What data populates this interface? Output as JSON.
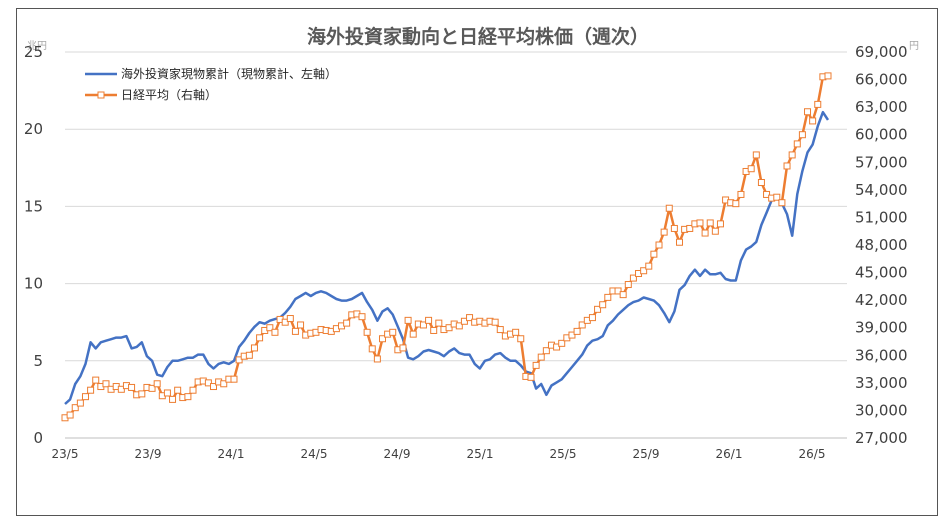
{
  "chart_data": {
    "type": "line",
    "title": "海外投資家動向と日経平均株価（週次）",
    "left_unit": "兆円",
    "right_unit": "円",
    "x_ticks": [
      "23/5",
      "23/9",
      "24/1",
      "24/5",
      "24/9",
      "25/1",
      "25/5",
      "25/9",
      "26/1",
      "26/5"
    ],
    "y_left": {
      "min": 0,
      "max": 25,
      "ticks": [
        "0",
        "5",
        "10",
        "15",
        "20",
        "25"
      ]
    },
    "y_right": {
      "min": 27000,
      "max": 69000,
      "ticks": [
        "27,000",
        "30,000",
        "33,000",
        "36,000",
        "39,000",
        "42,000",
        "45,000",
        "48,000",
        "51,000",
        "54,000",
        "57,000",
        "60,000",
        "63,000",
        "66,000",
        "69,000"
      ]
    },
    "grid": true,
    "legend_placement": "top-left",
    "series": [
      {
        "name": "海外投資家現物累計（現物累計、左軸）",
        "axis": "left",
        "color": "#4472c4",
        "marker": "none",
        "values": [
          2.2,
          2.5,
          3.5,
          4.0,
          4.8,
          6.2,
          5.8,
          6.2,
          6.3,
          6.4,
          6.5,
          6.5,
          6.6,
          5.8,
          5.9,
          6.2,
          5.3,
          5.0,
          4.1,
          4.0,
          4.6,
          5.0,
          5.0,
          5.1,
          5.2,
          5.2,
          5.4,
          5.4,
          4.8,
          4.5,
          4.8,
          4.9,
          4.8,
          5.0,
          5.9,
          6.3,
          6.8,
          7.2,
          7.5,
          7.4,
          7.6,
          7.7,
          7.8,
          8.1,
          8.5,
          9.0,
          9.2,
          9.4,
          9.2,
          9.4,
          9.5,
          9.4,
          9.2,
          9.0,
          8.9,
          8.9,
          9.0,
          9.2,
          9.4,
          8.8,
          8.3,
          7.6,
          8.2,
          8.4,
          8.0,
          7.2,
          6.4,
          5.2,
          5.1,
          5.3,
          5.6,
          5.7,
          5.6,
          5.5,
          5.3,
          5.6,
          5.8,
          5.5,
          5.4,
          5.4,
          4.8,
          4.5,
          5.0,
          5.1,
          5.4,
          5.5,
          5.2,
          5.0,
          5.0,
          4.7,
          4.3,
          4.2,
          3.2,
          3.5,
          2.8,
          3.4,
          3.6,
          3.8,
          4.2,
          4.6,
          5.0,
          5.4,
          6.0,
          6.3,
          6.4,
          6.6,
          7.3,
          7.6,
          8.0,
          8.3,
          8.6,
          8.8,
          8.9,
          9.1,
          9.0,
          8.9,
          8.6,
          8.1,
          7.5,
          8.2,
          9.6,
          9.9,
          10.5,
          10.9,
          10.5,
          10.9,
          10.6,
          10.6,
          10.7,
          10.3,
          10.2,
          10.2,
          11.5,
          12.2,
          12.4,
          12.7,
          13.8,
          14.6,
          15.4,
          15.6,
          15.2,
          14.5,
          13.1,
          15.8,
          17.3,
          18.5,
          19.0,
          20.2,
          21.1,
          20.6
        ]
      },
      {
        "name": "日経平均（右軸）",
        "axis": "right",
        "color": "#ed7d31",
        "marker": "open-square",
        "values": [
          29200,
          29500,
          30300,
          30800,
          31500,
          32200,
          33300,
          32600,
          32900,
          32300,
          32600,
          32300,
          32700,
          32500,
          31700,
          31800,
          32500,
          32400,
          32900,
          31600,
          31900,
          31200,
          32200,
          31400,
          31500,
          32200,
          33100,
          33200,
          33000,
          32600,
          33100,
          32900,
          33400,
          33400,
          35500,
          35900,
          36000,
          36800,
          37900,
          38700,
          39000,
          38500,
          39900,
          39600,
          40000,
          38600,
          39300,
          38200,
          38400,
          38500,
          38800,
          38700,
          38600,
          38900,
          39200,
          39500,
          40400,
          40500,
          40200,
          38500,
          36700,
          35600,
          37800,
          38300,
          38500,
          36600,
          36800,
          39800,
          38300,
          39400,
          39300,
          39800,
          38700,
          39500,
          38800,
          39000,
          39400,
          39200,
          39700,
          40100,
          39600,
          39700,
          39500,
          39700,
          39600,
          38800,
          38100,
          38300,
          38500,
          37800,
          33700,
          33600,
          34900,
          35800,
          36500,
          37100,
          36900,
          37300,
          37900,
          38200,
          38600,
          39300,
          39800,
          40100,
          41000,
          41500,
          42300,
          43000,
          43000,
          42600,
          43700,
          44400,
          44900,
          45200,
          45700,
          47000,
          48000,
          49400,
          52000,
          49800,
          48300,
          49700,
          49800,
          50300,
          50400,
          49300,
          50400,
          49500,
          50300,
          52900,
          52600,
          52500,
          53500,
          56000,
          56300,
          57800,
          54800,
          53500,
          53100,
          53200,
          52600,
          56600,
          57800,
          59000,
          60000,
          62500,
          61500,
          63300,
          66300,
          66400
        ]
      }
    ]
  }
}
